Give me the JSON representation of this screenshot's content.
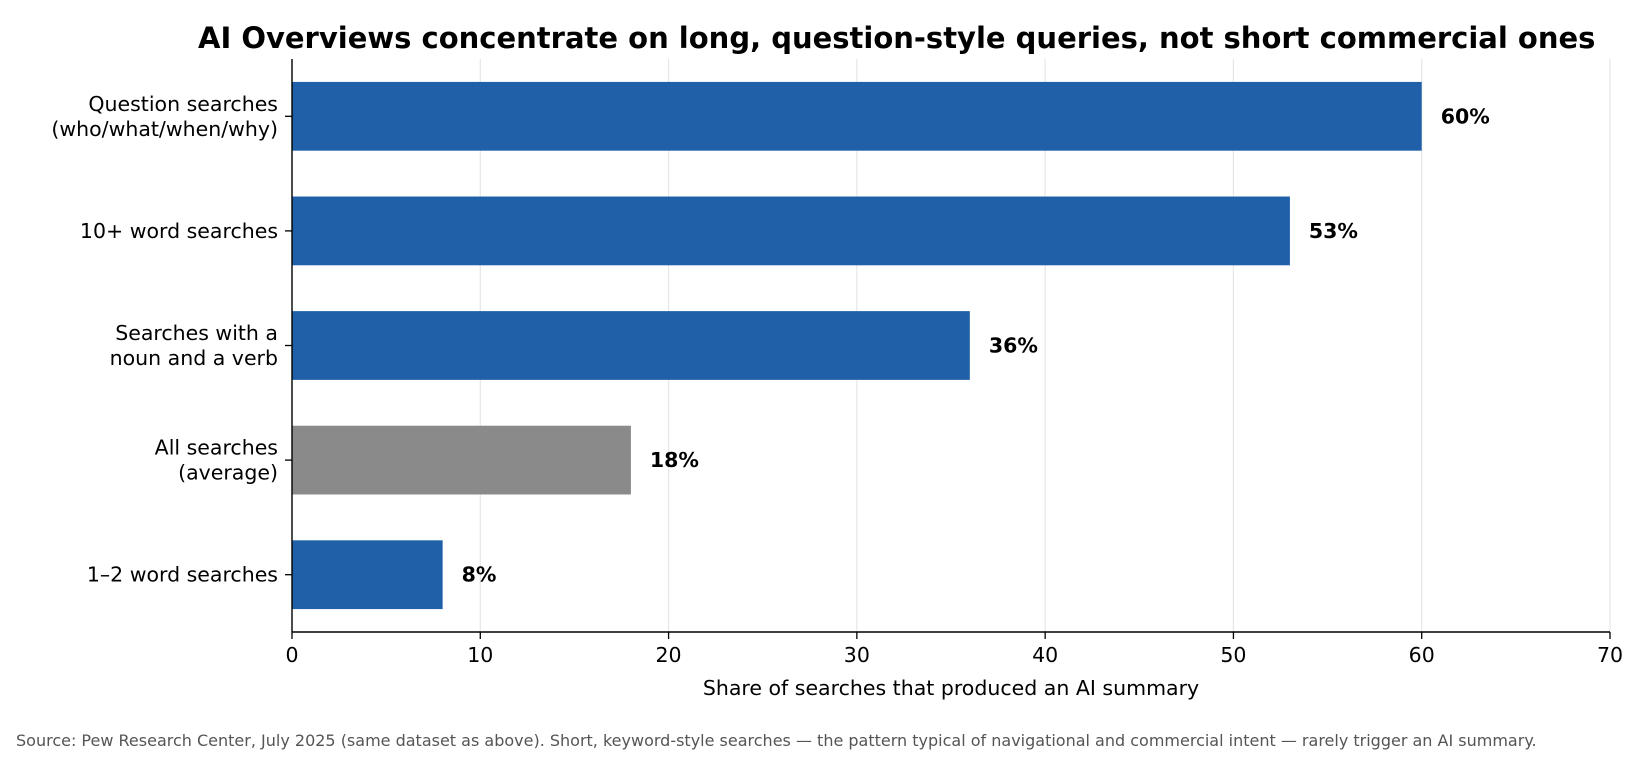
{
  "chart_data": {
    "type": "bar",
    "orientation": "horizontal",
    "title": "AI Overviews concentrate on long, question-style queries, not short commercial ones",
    "xlabel": "Share of searches that produced an AI summary",
    "ylabel": "",
    "xlim": [
      0,
      70
    ],
    "xticks": [
      "0",
      "10",
      "20",
      "30",
      "40",
      "50",
      "60",
      "70"
    ],
    "grid": "vertical",
    "categories": [
      [
        "Question searches",
        "(who/what/when/why)"
      ],
      [
        "10+ word searches"
      ],
      [
        "Searches with a",
        "noun and a verb"
      ],
      [
        "All searches",
        "(average)"
      ],
      [
        "1–2 word searches"
      ]
    ],
    "values": [
      60,
      53,
      36,
      18,
      8
    ],
    "value_labels": [
      "60%",
      "53%",
      "36%",
      "18%",
      "8%"
    ],
    "colors": [
      "#2060a8",
      "#2060a8",
      "#2060a8",
      "#8a8a8a",
      "#2060a8"
    ],
    "grid_color": "#e6e6e6"
  },
  "source": "Source: Pew Research Center, July 2025 (same dataset as above). Short, keyword-style searches — the pattern typical of navigational and commercial intent — rarely trigger an AI summary."
}
